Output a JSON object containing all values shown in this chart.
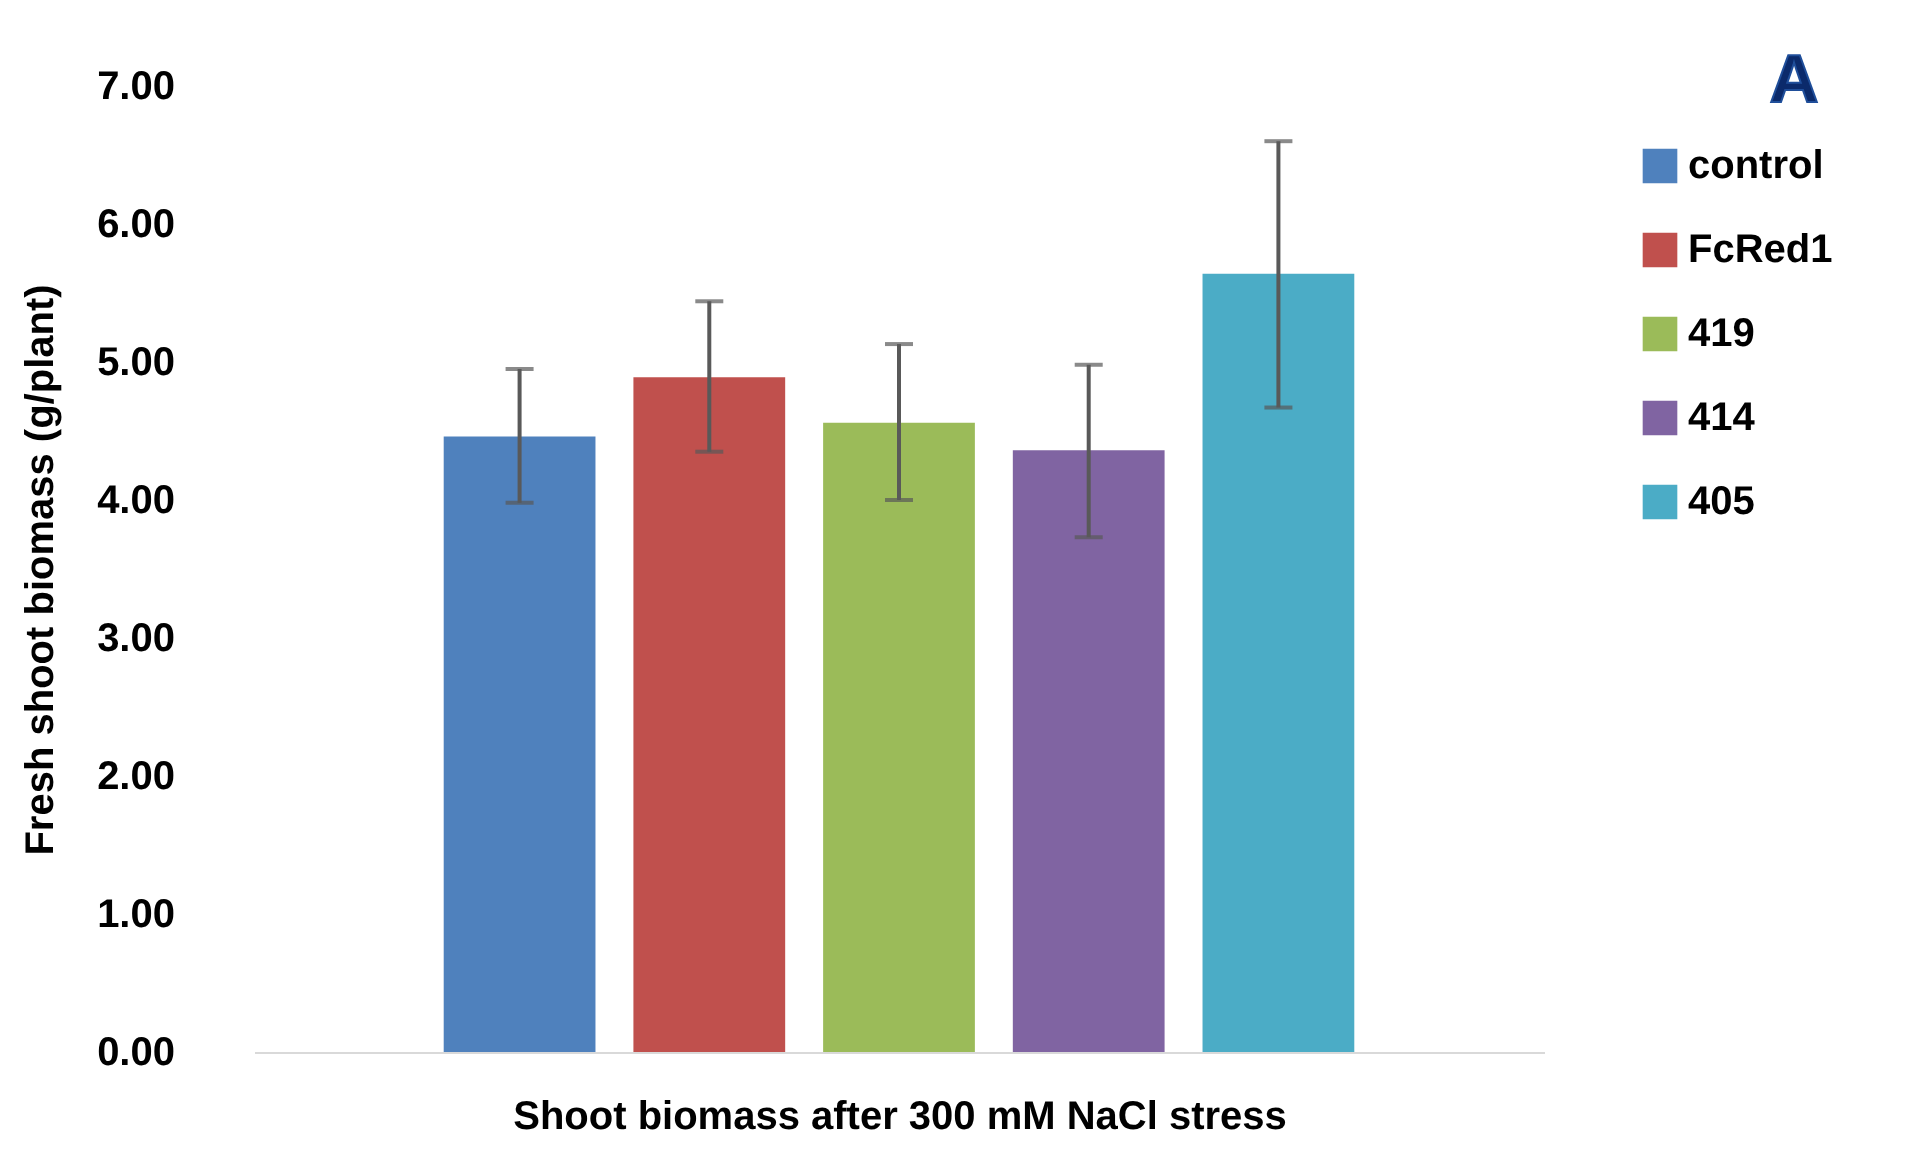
{
  "chart_data": {
    "type": "bar",
    "ylabel": "Fresh shoot biomass (g/plant)",
    "xlabel": "Shoot biomass after 300 mM NaCl stress",
    "categories": [
      null
    ],
    "series": [
      {
        "name": "control",
        "color": "#4f81bd",
        "values": [
          4.46
        ],
        "errors": [
          [
            3.98,
            4.95
          ]
        ]
      },
      {
        "name": "FcRed1",
        "color": "#c0504d",
        "values": [
          4.89
        ],
        "errors": [
          [
            4.35,
            5.44
          ]
        ]
      },
      {
        "name": "419",
        "color": "#9bbb59",
        "values": [
          4.56
        ],
        "errors": [
          [
            4.0,
            5.13
          ]
        ]
      },
      {
        "name": "414",
        "color": "#8064a2",
        "values": [
          4.36
        ],
        "errors": [
          [
            3.73,
            4.98
          ]
        ]
      },
      {
        "name": "405",
        "color": "#4bacc6",
        "values": [
          5.64
        ],
        "errors": [
          [
            4.67,
            6.6
          ]
        ]
      }
    ],
    "ylim": [
      0,
      7
    ],
    "yticks": [
      {
        "value": 0,
        "label": "0.00"
      },
      {
        "value": 1,
        "label": "1.00"
      },
      {
        "value": 2,
        "label": "2.00"
      },
      {
        "value": 3,
        "label": "3.00"
      },
      {
        "value": 4,
        "label": "4.00"
      },
      {
        "value": 5,
        "label": "5.00"
      },
      {
        "value": 6,
        "label": "6.00"
      },
      {
        "value": 7,
        "label": "7.00"
      }
    ],
    "annotations": [
      "A"
    ],
    "legend": "right",
    "grid": false,
    "tick_labels": "y"
  }
}
